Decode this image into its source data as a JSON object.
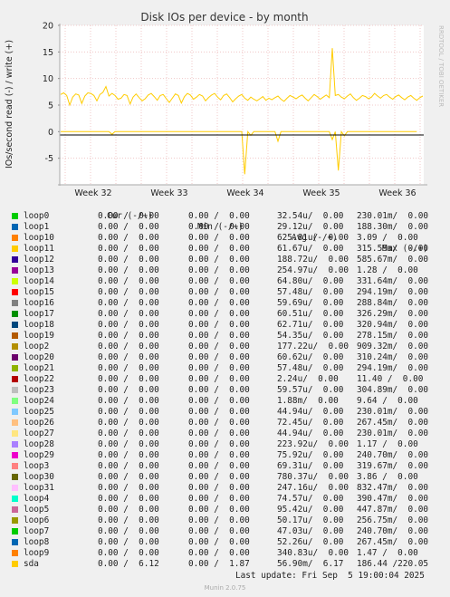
{
  "chart_data": {
    "type": "line",
    "title": "Disk IOs per device - by month",
    "ylabel": "IOs/second read (-) / write (+)",
    "ylim": [
      -10,
      20
    ],
    "yticks": [
      -5,
      0,
      5,
      10,
      15,
      20
    ],
    "xticks": [
      "Week 32",
      "Week 33",
      "Week 34",
      "Week 35",
      "Week 36"
    ],
    "grid": true,
    "side_label": "RRDTOOL / TOBI OETIKER",
    "series": [
      {
        "name": "sda",
        "color": "#ffcc00",
        "write": [
          7.0,
          7.3,
          6.8,
          5.0,
          6.5,
          7.1,
          6.9,
          5.3,
          6.7,
          7.3,
          7.2,
          6.8,
          5.8,
          7.0,
          7.4,
          8.5,
          6.7,
          7.2,
          6.8,
          6.1,
          6.3,
          7.0,
          6.8,
          5.2,
          6.5,
          7.1,
          6.4,
          5.8,
          6.2,
          6.9,
          7.2,
          6.6,
          5.9,
          6.8,
          7.0,
          6.2,
          5.5,
          6.3,
          7.1,
          6.8,
          5.4,
          6.6,
          7.2,
          6.9,
          6.1,
          6.5,
          7.0,
          6.7,
          5.8,
          6.4,
          6.9,
          7.2,
          6.5,
          6.0,
          6.8,
          7.1,
          6.4,
          5.6,
          6.2,
          6.7,
          7.0,
          6.3,
          5.9,
          6.5,
          6.1,
          5.8,
          6.2,
          6.6,
          5.9,
          6.3,
          6.0,
          6.4,
          6.7,
          6.1,
          5.7,
          6.3,
          6.8,
          6.5,
          6.2,
          6.6,
          6.9,
          6.3,
          5.8,
          6.4,
          7.0,
          6.6,
          6.1,
          6.5,
          6.9,
          6.4,
          15.7,
          6.8,
          7.0,
          6.5,
          6.2,
          6.7,
          7.1,
          6.4,
          5.9,
          6.3,
          6.8,
          6.6,
          6.2,
          6.5,
          7.2,
          6.7,
          6.3,
          6.8,
          7.0,
          6.5,
          6.1,
          6.6,
          6.9,
          6.4,
          6.0,
          6.5,
          6.8,
          6.3,
          5.9,
          6.4,
          6.7
        ],
        "read": [
          0,
          0,
          0,
          0,
          0,
          0,
          0,
          0,
          0,
          0,
          0,
          0,
          0,
          0,
          0,
          0,
          0,
          -0.5,
          0,
          0,
          0,
          0,
          0,
          0,
          0,
          0,
          0,
          0,
          0,
          0,
          0,
          0,
          0,
          0,
          0,
          0,
          0,
          0,
          0,
          0,
          0,
          0,
          0,
          0,
          0,
          0,
          0,
          0,
          0,
          0,
          0,
          0,
          0,
          0,
          0,
          0,
          0,
          0,
          0,
          0,
          0,
          -8.0,
          0,
          -0.7,
          0,
          0,
          0,
          0,
          0,
          0,
          0,
          0,
          -1.8,
          0,
          0,
          0,
          0,
          0,
          0,
          0,
          0,
          0,
          0,
          0,
          0,
          0,
          0,
          0,
          0,
          0,
          -1.5,
          0,
          -7.3,
          0,
          -0.8,
          0,
          0,
          0,
          0,
          0,
          0,
          0,
          0,
          0,
          0,
          0,
          0,
          0,
          0,
          0,
          0,
          0,
          0,
          0,
          0,
          0,
          0,
          0,
          0
        ]
      }
    ]
  },
  "legend": {
    "header": {
      "cur": "Cur (-/+)",
      "min": "Min (-/+)",
      "avg": "Avg (-/+)",
      "max": "Max (-/+)"
    },
    "rows": [
      {
        "name": "loop0",
        "color": "#00cc00",
        "cur": "0.00 /  0.00",
        "min": "0.00 /  0.00",
        "avg": "32.54u/  0.00",
        "max": "230.01m/  0.00"
      },
      {
        "name": "loop1",
        "color": "#0066b3",
        "cur": "0.00 /  0.00",
        "min": "0.00 /  0.00",
        "avg": "29.12u/  0.00",
        "max": "188.30m/  0.00"
      },
      {
        "name": "loop10",
        "color": "#ff8000",
        "cur": "0.00 /  0.00",
        "min": "0.00 /  0.00",
        "avg": "625.81u/  0.00",
        "max": "3.09 /  0.00"
      },
      {
        "name": "loop11",
        "color": "#ffcc00",
        "cur": "0.00 /  0.00",
        "min": "0.00 /  0.00",
        "avg": "61.67u/  0.00",
        "max": "315.59m/  0.00"
      },
      {
        "name": "loop12",
        "color": "#330099",
        "cur": "0.00 /  0.00",
        "min": "0.00 /  0.00",
        "avg": "188.72u/  0.00",
        "max": "585.67m/  0.00"
      },
      {
        "name": "loop13",
        "color": "#990099",
        "cur": "0.00 /  0.00",
        "min": "0.00 /  0.00",
        "avg": "254.97u/  0.00",
        "max": "1.28 /  0.00"
      },
      {
        "name": "loop14",
        "color": "#ccff00",
        "cur": "0.00 /  0.00",
        "min": "0.00 /  0.00",
        "avg": "64.80u/  0.00",
        "max": "331.64m/  0.00"
      },
      {
        "name": "loop15",
        "color": "#ff0000",
        "cur": "0.00 /  0.00",
        "min": "0.00 /  0.00",
        "avg": "57.48u/  0.00",
        "max": "294.19m/  0.00"
      },
      {
        "name": "loop16",
        "color": "#808080",
        "cur": "0.00 /  0.00",
        "min": "0.00 /  0.00",
        "avg": "59.69u/  0.00",
        "max": "288.84m/  0.00"
      },
      {
        "name": "loop17",
        "color": "#008f00",
        "cur": "0.00 /  0.00",
        "min": "0.00 /  0.00",
        "avg": "60.51u/  0.00",
        "max": "326.29m/  0.00"
      },
      {
        "name": "loop18",
        "color": "#00487d",
        "cur": "0.00 /  0.00",
        "min": "0.00 /  0.00",
        "avg": "62.71u/  0.00",
        "max": "320.94m/  0.00"
      },
      {
        "name": "loop19",
        "color": "#b35a00",
        "cur": "0.00 /  0.00",
        "min": "0.00 /  0.00",
        "avg": "54.35u/  0.00",
        "max": "278.15m/  0.00"
      },
      {
        "name": "loop2",
        "color": "#b38f00",
        "cur": "0.00 /  0.00",
        "min": "0.00 /  0.00",
        "avg": "177.22u/  0.00",
        "max": "909.32m/  0.00"
      },
      {
        "name": "loop20",
        "color": "#6b006b",
        "cur": "0.00 /  0.00",
        "min": "0.00 /  0.00",
        "avg": "60.62u/  0.00",
        "max": "310.24m/  0.00"
      },
      {
        "name": "loop21",
        "color": "#8fb300",
        "cur": "0.00 /  0.00",
        "min": "0.00 /  0.00",
        "avg": "57.48u/  0.00",
        "max": "294.19m/  0.00"
      },
      {
        "name": "loop22",
        "color": "#b30000",
        "cur": "0.00 /  0.00",
        "min": "0.00 /  0.00",
        "avg": "2.24u/  0.00",
        "max": "11.40 /  0.00"
      },
      {
        "name": "loop23",
        "color": "#bebebe",
        "cur": "0.00 /  0.00",
        "min": "0.00 /  0.00",
        "avg": "59.57u/  0.00",
        "max": "304.89m/  0.00"
      },
      {
        "name": "loop24",
        "color": "#80ff80",
        "cur": "0.00 /  0.00",
        "min": "0.00 /  0.00",
        "avg": "1.88m/  0.00",
        "max": "9.64 /  0.00"
      },
      {
        "name": "loop25",
        "color": "#80c9ff",
        "cur": "0.00 /  0.00",
        "min": "0.00 /  0.00",
        "avg": "44.94u/  0.00",
        "max": "230.01m/  0.00"
      },
      {
        "name": "loop26",
        "color": "#ffc080",
        "cur": "0.00 /  0.00",
        "min": "0.00 /  0.00",
        "avg": "72.45u/  0.00",
        "max": "267.45m/  0.00"
      },
      {
        "name": "loop27",
        "color": "#ffe680",
        "cur": "0.00 /  0.00",
        "min": "0.00 /  0.00",
        "avg": "44.94u/  0.00",
        "max": "230.01m/  0.00"
      },
      {
        "name": "loop28",
        "color": "#aa80ff",
        "cur": "0.00 /  0.00",
        "min": "0.00 /  0.00",
        "avg": "223.92u/  0.00",
        "max": "1.17 /  0.00"
      },
      {
        "name": "loop29",
        "color": "#ee00cc",
        "cur": "0.00 /  0.00",
        "min": "0.00 /  0.00",
        "avg": "75.92u/  0.00",
        "max": "240.70m/  0.00"
      },
      {
        "name": "loop3",
        "color": "#ff8080",
        "cur": "0.00 /  0.00",
        "min": "0.00 /  0.00",
        "avg": "69.31u/  0.00",
        "max": "319.67m/  0.00"
      },
      {
        "name": "loop30",
        "color": "#666600",
        "cur": "0.00 /  0.00",
        "min": "0.00 /  0.00",
        "avg": "780.37u/  0.00",
        "max": "3.86 /  0.00"
      },
      {
        "name": "loop31",
        "color": "#ffbfff",
        "cur": "0.00 /  0.00",
        "min": "0.00 /  0.00",
        "avg": "247.16u/  0.00",
        "max": "832.47m/  0.00"
      },
      {
        "name": "loop4",
        "color": "#00ffcc",
        "cur": "0.00 /  0.00",
        "min": "0.00 /  0.00",
        "avg": "74.57u/  0.00",
        "max": "390.47m/  0.00"
      },
      {
        "name": "loop5",
        "color": "#cc6699",
        "cur": "0.00 /  0.00",
        "min": "0.00 /  0.00",
        "avg": "95.42u/  0.00",
        "max": "447.87m/  0.00"
      },
      {
        "name": "loop6",
        "color": "#999900",
        "cur": "0.00 /  0.00",
        "min": "0.00 /  0.00",
        "avg": "50.17u/  0.00",
        "max": "256.75m/  0.00"
      },
      {
        "name": "loop7",
        "color": "#00cc00",
        "cur": "0.00 /  0.00",
        "min": "0.00 /  0.00",
        "avg": "47.03u/  0.00",
        "max": "240.70m/  0.00"
      },
      {
        "name": "loop8",
        "color": "#0066b3",
        "cur": "0.00 /  0.00",
        "min": "0.00 /  0.00",
        "avg": "52.26u/  0.00",
        "max": "267.45m/  0.00"
      },
      {
        "name": "loop9",
        "color": "#ff8000",
        "cur": "0.00 /  0.00",
        "min": "0.00 /  0.00",
        "avg": "340.83u/  0.00",
        "max": "1.47 /  0.00"
      },
      {
        "name": "sda",
        "color": "#ffcc00",
        "cur": "0.00 /  6.12",
        "min": "0.00 /  1.87",
        "avg": "56.90m/  6.17",
        "max": "186.44 /220.05"
      }
    ]
  },
  "footer": {
    "last_update": "Last update: Fri Sep  5 19:00:04 2025",
    "version": "Munin 2.0.75"
  }
}
